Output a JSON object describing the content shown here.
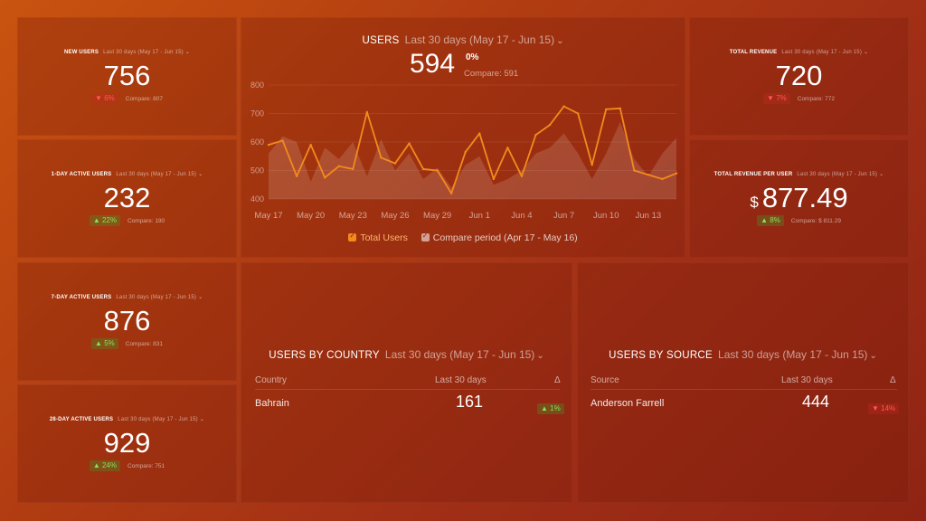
{
  "range_label": "Last 30 days (May 17 - Jun 15)",
  "kpis": {
    "new_users": {
      "title": "NEW USERS",
      "value": "756",
      "delta": "▼ 6%",
      "compare": "Compare: 807",
      "direction": "down"
    },
    "active_1d": {
      "title": "1-DAY ACTIVE USERS",
      "value": "232",
      "delta": "▲ 22%",
      "compare": "Compare: 190",
      "direction": "up"
    },
    "active_7d": {
      "title": "7-DAY ACTIVE USERS",
      "value": "876",
      "delta": "▲ 5%",
      "compare": "Compare: 831",
      "direction": "up"
    },
    "active_28d": {
      "title": "28-DAY ACTIVE USERS",
      "value": "929",
      "delta": "▲ 24%",
      "compare": "Compare: 751",
      "direction": "up"
    },
    "total_revenue": {
      "title": "TOTAL REVENUE",
      "value": "720",
      "delta": "▼ 7%",
      "compare": "Compare: 772",
      "direction": "down"
    },
    "revenue_per_user": {
      "title": "TOTAL REVENUE PER USER",
      "currency": "$",
      "value": "877.49",
      "delta": "▲ 8%",
      "compare": "Compare: $ 811.29",
      "direction": "up"
    }
  },
  "users_chart": {
    "title": "USERS",
    "value": "594",
    "pct": "0%",
    "compare": "Compare: 591",
    "legend": {
      "total": "Total Users",
      "compare": "Compare period (Apr 17 - May 16)"
    }
  },
  "country_table": {
    "title": "USERS BY COUNTRY",
    "col_name": "Country",
    "col_value": "Last 30 days",
    "col_delta": "Δ",
    "rows": [
      {
        "name": "Bahrain",
        "value": "161",
        "delta": "▲ 1%"
      }
    ]
  },
  "source_table": {
    "title": "USERS BY SOURCE",
    "col_name": "Source",
    "col_value": "Last 30 days",
    "col_delta": "Δ",
    "rows": [
      {
        "name": "Anderson Farrell",
        "value": "444",
        "delta": "▼ 14%"
      }
    ]
  },
  "colors": {
    "line": "#f28b1c",
    "compare_area": "#ffffff",
    "up": "#8be05c",
    "down": "#ff5a4e"
  },
  "chart_data": {
    "type": "line",
    "title": "USERS",
    "xlabel": "",
    "ylabel": "",
    "ylim": [
      400,
      800
    ],
    "yticks": [
      400,
      500,
      600,
      700,
      800
    ],
    "xtick_labels": [
      "May 17",
      "May 20",
      "May 23",
      "May 26",
      "May 29",
      "Jun 1",
      "Jun 4",
      "Jun 7",
      "Jun 10",
      "Jun 13"
    ],
    "x": [
      "May 17",
      "May 18",
      "May 19",
      "May 20",
      "May 21",
      "May 22",
      "May 23",
      "May 24",
      "May 25",
      "May 26",
      "May 27",
      "May 28",
      "May 29",
      "May 30",
      "May 31",
      "Jun 1",
      "Jun 2",
      "Jun 3",
      "Jun 4",
      "Jun 5",
      "Jun 6",
      "Jun 7",
      "Jun 8",
      "Jun 9",
      "Jun 10",
      "Jun 11",
      "Jun 12",
      "Jun 13",
      "Jun 14",
      "Jun 15"
    ],
    "series": [
      {
        "name": "Total Users",
        "style": "line",
        "values": [
          590,
          605,
          480,
          590,
          475,
          515,
          505,
          705,
          545,
          525,
          595,
          505,
          500,
          420,
          565,
          630,
          470,
          580,
          480,
          625,
          660,
          725,
          700,
          520,
          715,
          718,
          500,
          485,
          470,
          490
        ]
      },
      {
        "name": "Compare period (Apr 17 - May 16)",
        "style": "area",
        "values": [
          560,
          620,
          600,
          460,
          580,
          540,
          600,
          480,
          610,
          500,
          560,
          470,
          510,
          440,
          520,
          550,
          450,
          470,
          500,
          560,
          580,
          630,
          560,
          470,
          560,
          670,
          540,
          480,
          560,
          615
        ]
      }
    ],
    "grid": true,
    "legend": "bottom"
  }
}
